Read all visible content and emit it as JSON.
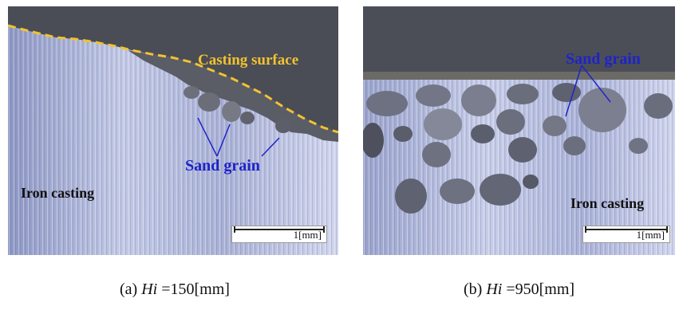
{
  "panel_a": {
    "labels": {
      "casting_surface": "Casting surface",
      "sand_grain": "Sand grain",
      "iron_casting": "Iron casting"
    },
    "scale_bar": "1[mm]",
    "caption": {
      "prefix": "(a) ",
      "var": "Hi",
      "value": " =150[mm]"
    }
  },
  "panel_b": {
    "labels": {
      "sand_grain": "Sand grain",
      "iron_casting": "Iron casting"
    },
    "scale_bar": "1[mm]",
    "caption": {
      "prefix": "(b) ",
      "var": "Hi",
      "value": " =950[mm]"
    }
  },
  "colors": {
    "surface_label": "#f2c230",
    "sand_label": "#1e23c8",
    "iron_label": "#111111"
  }
}
